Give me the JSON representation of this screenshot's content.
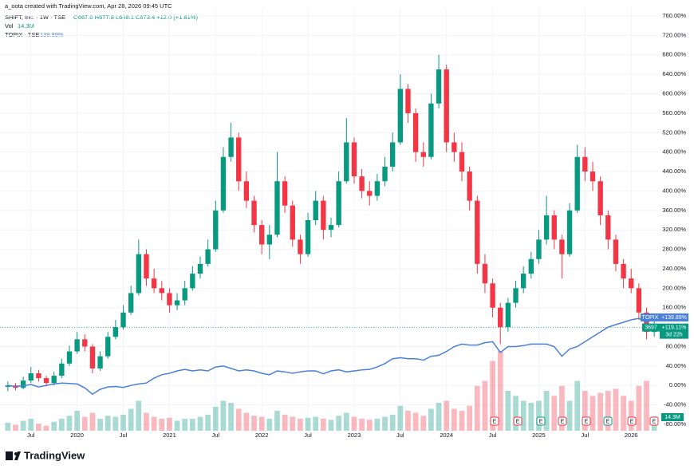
{
  "chart_data": {
    "type": "candlestick",
    "credit": "a_oota created with TradingView.com, Apr 28, 2026 09:45 UTC",
    "symbol_title": "SHIFT, Inc. · 1W · TSE",
    "ohlc_text": "O667.0 H677.8 L648.1 C673.4 +12.0 (+1.81%)",
    "volume_title": "Vol",
    "volume_label": "14.3M",
    "compare_title": "TOPIX · TSE",
    "compare_label": "139.89%",
    "brand": "TradingView",
    "categories": [
      null,
      null,
      null,
      "Jul",
      null,
      null,
      null,
      null,
      null,
      "2020",
      null,
      null,
      null,
      null,
      null,
      "Jul",
      null,
      null,
      null,
      null,
      null,
      "2021",
      null,
      null,
      null,
      null,
      null,
      "Jul",
      null,
      null,
      null,
      null,
      null,
      "2022",
      null,
      null,
      null,
      null,
      null,
      "Jul",
      null,
      null,
      null,
      null,
      null,
      "2023",
      null,
      null,
      null,
      null,
      null,
      "Jul",
      null,
      null,
      null,
      null,
      null,
      "2024",
      null,
      null,
      null,
      null,
      null,
      "Jul",
      null,
      null,
      null,
      null,
      null,
      "2025",
      null,
      null,
      null,
      null,
      null,
      "Jul",
      null,
      null,
      null,
      null,
      null,
      "2026",
      null,
      null,
      null
    ],
    "series": [
      {
        "name": "SHIFT",
        "up_color": "#089981",
        "down_color": "#f23645",
        "open": [
          -3,
          0,
          -5,
          10,
          25,
          15,
          5,
          20,
          45,
          70,
          95,
          80,
          35,
          60,
          100,
          120,
          150,
          190,
          270,
          220,
          200,
          190,
          165,
          175,
          200,
          230,
          250,
          280,
          360,
          470,
          510,
          420,
          380,
          330,
          290,
          310,
          420,
          370,
          300,
          270,
          340,
          380,
          320,
          330,
          420,
          500,
          430,
          400,
          390,
          420,
          450,
          500,
          610,
          560,
          480,
          470,
          580,
          650,
          500,
          480,
          440,
          380,
          250,
          210,
          160,
          120,
          170,
          200,
          230,
          260,
          300,
          350,
          300,
          270,
          360,
          470,
          440,
          420,
          350,
          300,
          250,
          220,
          200,
          150,
          110
        ],
        "high": [
          8,
          5,
          18,
          38,
          32,
          20,
          28,
          55,
          82,
          110,
          105,
          85,
          70,
          110,
          135,
          165,
          205,
          300,
          280,
          240,
          215,
          200,
          190,
          215,
          245,
          265,
          300,
          380,
          490,
          540,
          520,
          440,
          390,
          340,
          330,
          480,
          430,
          380,
          310,
          355,
          400,
          390,
          345,
          440,
          550,
          510,
          445,
          420,
          435,
          470,
          520,
          640,
          620,
          570,
          500,
          600,
          680,
          660,
          520,
          500,
          450,
          390,
          270,
          220,
          170,
          180,
          215,
          245,
          275,
          320,
          390,
          360,
          310,
          375,
          495,
          490,
          460,
          430,
          360,
          310,
          260,
          240,
          210,
          160,
          135
        ],
        "low": [
          -12,
          -10,
          -8,
          5,
          8,
          -2,
          0,
          15,
          40,
          65,
          70,
          25,
          30,
          55,
          95,
          115,
          145,
          185,
          205,
          190,
          175,
          150,
          155,
          165,
          195,
          220,
          245,
          275,
          355,
          460,
          400,
          365,
          315,
          270,
          260,
          305,
          355,
          285,
          250,
          265,
          330,
          300,
          305,
          325,
          415,
          415,
          385,
          370,
          380,
          410,
          440,
          495,
          540,
          460,
          450,
          465,
          570,
          480,
          460,
          420,
          360,
          230,
          190,
          140,
          85,
          110,
          160,
          190,
          220,
          250,
          290,
          280,
          220,
          265,
          355,
          420,
          400,
          330,
          280,
          235,
          200,
          190,
          135,
          95,
          100
        ],
        "close": [
          0,
          -5,
          10,
          25,
          15,
          5,
          20,
          45,
          70,
          95,
          80,
          35,
          60,
          100,
          120,
          150,
          190,
          270,
          220,
          200,
          190,
          165,
          175,
          200,
          230,
          250,
          280,
          360,
          470,
          510,
          420,
          380,
          330,
          290,
          310,
          420,
          370,
          300,
          270,
          340,
          380,
          320,
          330,
          420,
          500,
          430,
          400,
          390,
          420,
          450,
          500,
          610,
          560,
          480,
          470,
          580,
          650,
          500,
          480,
          440,
          380,
          250,
          210,
          160,
          120,
          170,
          200,
          230,
          260,
          300,
          350,
          300,
          270,
          360,
          470,
          440,
          420,
          350,
          300,
          250,
          220,
          200,
          150,
          110,
          119.11
        ],
        "volume": [
          8,
          6,
          10,
          12,
          7,
          5,
          9,
          12,
          15,
          20,
          14,
          18,
          12,
          15,
          14,
          16,
          22,
          30,
          18,
          14,
          12,
          13,
          10,
          12,
          12,
          14,
          16,
          24,
          30,
          28,
          22,
          18,
          15,
          14,
          12,
          20,
          16,
          14,
          12,
          13,
          14,
          12,
          11,
          15,
          18,
          14,
          12,
          11,
          12,
          14,
          16,
          25,
          20,
          18,
          15,
          22,
          28,
          30,
          22,
          20,
          25,
          45,
          50,
          70,
          80,
          40,
          35,
          30,
          28,
          30,
          40,
          35,
          45,
          30,
          50,
          40,
          35,
          38,
          40,
          42,
          35,
          30,
          45,
          50,
          14.3
        ],
        "symbol": "3697",
        "value_label": "+119.11%",
        "countdown": "3d 22h"
      },
      {
        "name": "TOPIX",
        "type": "line",
        "color": "#4a7fdc",
        "values": [
          0,
          -2,
          -1,
          2,
          -3,
          0,
          3,
          5,
          4,
          3,
          -5,
          -18,
          -8,
          -3,
          -2,
          -4,
          0,
          3,
          5,
          15,
          22,
          25,
          30,
          33,
          30,
          32,
          30,
          38,
          40,
          35,
          30,
          32,
          30,
          25,
          22,
          30,
          28,
          25,
          28,
          30,
          30,
          24,
          30,
          32,
          28,
          30,
          32,
          33,
          38,
          45,
          55,
          57,
          55,
          55,
          52,
          60,
          62,
          70,
          80,
          85,
          83,
          83,
          88,
          90,
          68,
          80,
          80,
          82,
          85,
          85,
          85,
          80,
          60,
          75,
          80,
          90,
          100,
          110,
          120,
          125,
          130,
          135,
          138,
          130,
          139.89
        ],
        "value_label": "+139.89%"
      }
    ],
    "earnings_markers": [
      "E",
      "E",
      "E",
      "E",
      "E",
      "E",
      "E",
      "E"
    ],
    "ylim": [
      -80,
      760
    ],
    "yticks": [
      {
        "value": 760,
        "label": "760.00%"
      },
      {
        "value": 720,
        "label": "720.00%"
      },
      {
        "value": 680,
        "label": "680.00%"
      },
      {
        "value": 640,
        "label": "640.00%"
      },
      {
        "value": 600,
        "label": "600.00%"
      },
      {
        "value": 560,
        "label": "560.00%"
      },
      {
        "value": 520,
        "label": "520.00%"
      },
      {
        "value": 480,
        "label": "480.00%"
      },
      {
        "value": 440,
        "label": "440.00%"
      },
      {
        "value": 400,
        "label": "400.00%"
      },
      {
        "value": 360,
        "label": "360.00%"
      },
      {
        "value": 320,
        "label": "320.00%"
      },
      {
        "value": 280,
        "label": "280.00%"
      },
      {
        "value": 240,
        "label": "240.00%"
      },
      {
        "value": 200,
        "label": "200.00%"
      },
      {
        "value": 160,
        "label": "160.00%"
      },
      {
        "value": 120,
        "label": "120.00%"
      },
      {
        "value": 80,
        "label": "80.00%"
      },
      {
        "value": 40,
        "label": "40.00%"
      },
      {
        "value": 0,
        "label": "0.00%"
      },
      {
        "value": -40,
        "label": "-40.00%"
      },
      {
        "value": -80,
        "label": "-80.00%"
      }
    ],
    "grid": true
  }
}
